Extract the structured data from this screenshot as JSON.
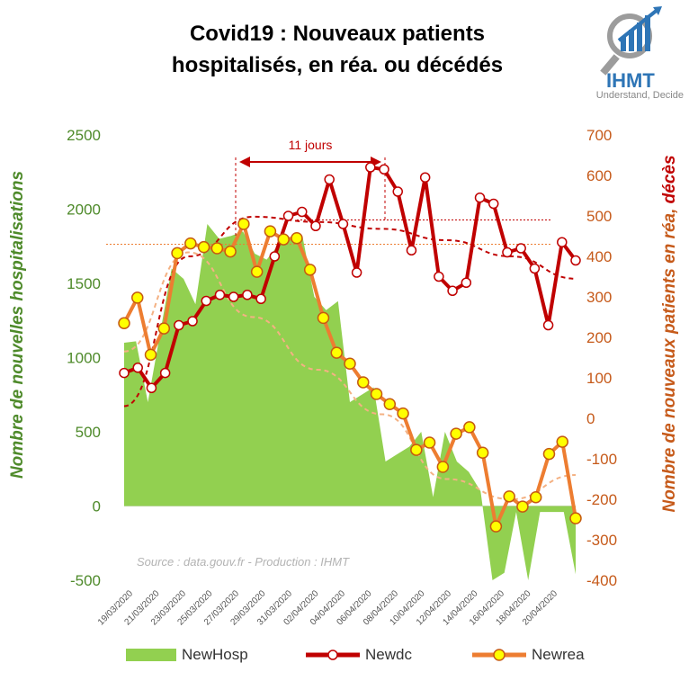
{
  "title_line1": "Covid19 : Nouveaux patients",
  "title_line2": "hospitalisés, en réa. ou décédés",
  "logo": {
    "text": "IHMT",
    "tagline": "Understand, Decide"
  },
  "source": "Source : data.gouv.fr - Production : IHMT",
  "annotation": "11 jours",
  "colors": {
    "newhosp": "#92d050",
    "newdc": "#c00000",
    "newrea": "#ed7d31",
    "newrea_marker": "#ffff00",
    "left_axis": "#4e8a2a",
    "right_axis": "#c65a1a"
  },
  "chart_data": {
    "type": "line",
    "title": "Covid19 : Nouveaux patients hospitalisés, en réa. ou décédés",
    "xlabel": "",
    "ylabel_left": "Nombre de nouvelles hospitalisations",
    "ylabel_right_part1": "Nombre de nouveaux patients en réa, ",
    "ylabel_right_part2": "décès",
    "ylim_left": [
      -500,
      2500
    ],
    "ylim_right": [
      -400,
      700
    ],
    "yticks_left": [
      "2500",
      "2000",
      "1500",
      "1000",
      "500",
      "0",
      "-500"
    ],
    "yticks_right": [
      "700",
      "600",
      "500",
      "400",
      "300",
      "200",
      "100",
      "0",
      "-100",
      "-200",
      "-300",
      "-400"
    ],
    "x_tick_labels": [
      "19/03/2020",
      "21/03/2020",
      "23/03/2020",
      "25/03/2020",
      "27/03/2020",
      "29/03/2020",
      "31/03/2020",
      "02/04/2020",
      "04/04/2020",
      "06/04/2020",
      "08/04/2020",
      "10/04/2020",
      "12/04/2020",
      "14/04/2020",
      "16/04/2020",
      "18/04/2020",
      "20/04/2020"
    ],
    "series": [
      {
        "name": "NewHosp",
        "type": "area",
        "axis": "left",
        "values": [
          1100,
          1110,
          700,
          1150,
          1600,
          1530,
          1360,
          1900,
          1800,
          1820,
          1850,
          1700,
          1660,
          1760,
          1800,
          1820,
          1410,
          1320,
          1380,
          700,
          750,
          800,
          300,
          350,
          400,
          500,
          60,
          500,
          300,
          230,
          100,
          -500,
          -450,
          -40,
          -500,
          -40,
          -40,
          -40,
          -460
        ]
      },
      {
        "name": "Newdc",
        "type": "line",
        "axis": "right",
        "values": [
          112,
          125,
          75,
          112,
          230,
          240,
          290,
          305,
          300,
          305,
          295,
          400,
          500,
          510,
          475,
          590,
          480,
          360,
          620,
          615,
          560,
          415,
          595,
          350,
          315,
          335,
          545,
          530,
          410,
          420,
          370,
          230,
          435,
          390
        ]
      },
      {
        "name": "Newrea",
        "type": "line",
        "axis": "right",
        "values": [
          235,
          298,
          157,
          222,
          408,
          432,
          423,
          420,
          412,
          480,
          362,
          462,
          442,
          445,
          367,
          248,
          162,
          135,
          89,
          60,
          35,
          12,
          -78,
          -60,
          -120,
          -38,
          -22,
          -85,
          -267,
          -193,
          -218,
          -195,
          -88,
          -58,
          -247
        ]
      }
    ],
    "trendlines": [
      {
        "name": "Newdc trend",
        "values": [
          30,
          400,
          498,
          485,
          468,
          440,
          400,
          345
        ]
      },
      {
        "name": "Newrea trend",
        "values": [
          165,
          410,
          250,
          120,
          10,
          -150,
          -200,
          -140
        ]
      }
    ]
  },
  "legend": [
    "NewHosp",
    "Newdc",
    "Newrea"
  ]
}
